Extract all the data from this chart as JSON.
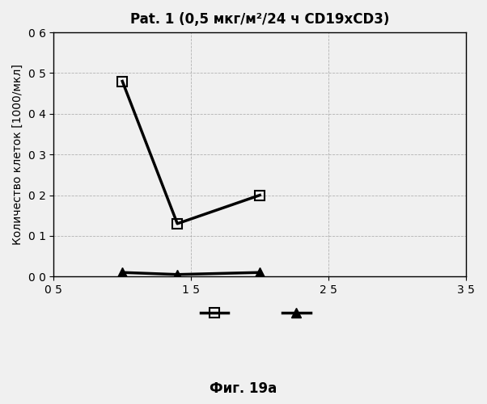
{
  "title": "Pat. 1 (0,5 мкг/м²/24 ч CD19xCD3)",
  "ylabel": "Количество клеток [1000/мкл]",
  "fig_caption": "Фиг. 19а",
  "xlim": [
    5,
    35
  ],
  "ylim": [
    0.0,
    0.6
  ],
  "xticks": [
    5,
    15,
    25,
    35
  ],
  "xtick_labels": [
    "0 5",
    "1 5",
    "2 5",
    "3 5"
  ],
  "yticks": [
    0.0,
    0.1,
    0.2,
    0.3,
    0.4,
    0.5,
    0.6
  ],
  "ytick_labels": [
    "0 0",
    "0 1",
    "0 2",
    "0 3",
    "0 4",
    "0 5",
    "0 6"
  ],
  "series_square": {
    "x": [
      10,
      14,
      20
    ],
    "y": [
      0.48,
      0.13,
      0.2
    ],
    "marker": "s",
    "color": "#000000",
    "linewidth": 2.5,
    "markersize": 9
  },
  "series_triangle": {
    "x": [
      10,
      14,
      20
    ],
    "y": [
      0.01,
      0.005,
      0.01
    ],
    "marker": "^",
    "color": "#000000",
    "linewidth": 2.5,
    "markersize": 9
  },
  "background_color": "#f0f0f0",
  "grid_color": "#999999",
  "title_fontsize": 12,
  "label_fontsize": 10,
  "tick_fontsize": 10,
  "caption_fontsize": 12
}
